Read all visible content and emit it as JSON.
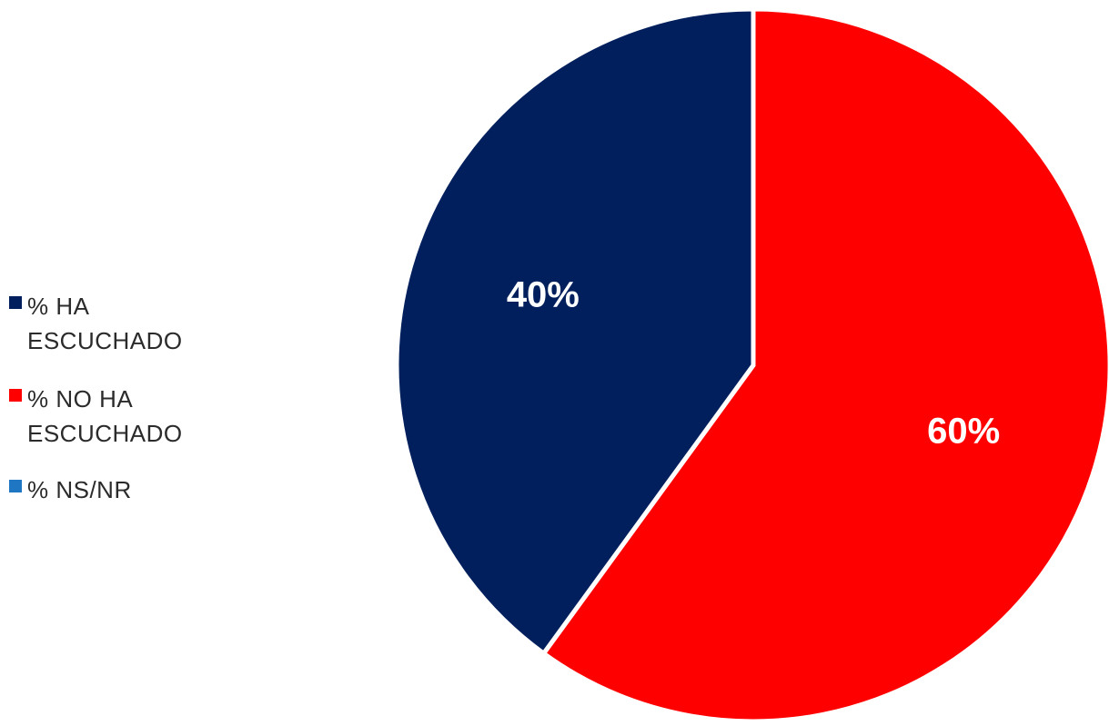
{
  "chart_data": {
    "type": "pie",
    "title": "",
    "categories": [
      "% HA ESCUCHADO",
      "% NO HA ESCUCHADO",
      "% NS/NR"
    ],
    "values": [
      40,
      60,
      0
    ],
    "value_labels": [
      "40%",
      "60%",
      ""
    ],
    "colors": [
      "#001f5c",
      "#ff0000",
      "#1f77c4"
    ],
    "legend_placement": "left",
    "start_angle_deg": 0,
    "direction": "clockwise"
  }
}
